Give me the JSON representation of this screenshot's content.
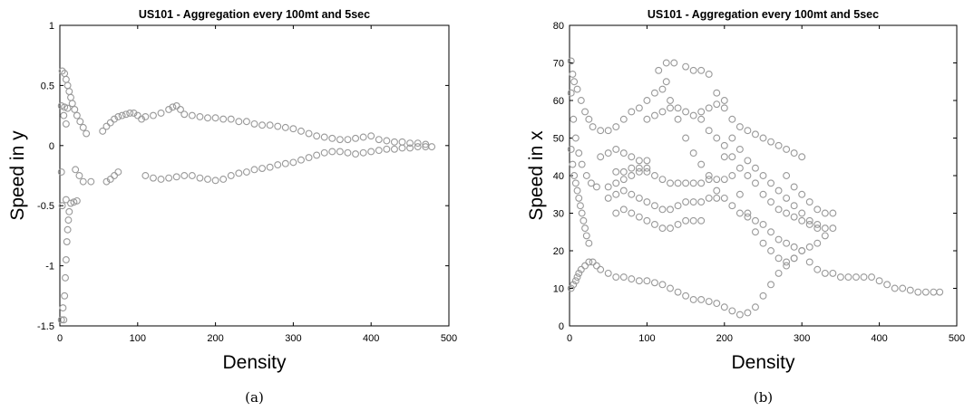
{
  "chart_data": [
    {
      "type": "scatter",
      "title": "US101 - Aggregation every 100mt and 5sec",
      "xlabel": "Density",
      "ylabel": "Speed in y",
      "caption": "(a)",
      "xlim": [
        0,
        500
      ],
      "ylim": [
        -1.5,
        1
      ],
      "xticks": [
        "0",
        "100",
        "200",
        "300",
        "400",
        "500"
      ],
      "yticks": [
        "-1.5",
        "-1",
        "-0.5",
        "0",
        "0.5",
        "1"
      ],
      "grid": false,
      "marker": "open-circle",
      "color": "#999999",
      "points": [
        [
          2,
          -1.45
        ],
        [
          5,
          -1.45
        ],
        [
          4,
          -1.35
        ],
        [
          6,
          -1.25
        ],
        [
          7,
          -1.1
        ],
        [
          8,
          -0.95
        ],
        [
          9,
          -0.8
        ],
        [
          10,
          -0.7
        ],
        [
          11,
          -0.62
        ],
        [
          12,
          -0.55
        ],
        [
          14,
          -0.48
        ],
        [
          18,
          -0.47
        ],
        [
          22,
          -0.46
        ],
        [
          8,
          -0.45
        ],
        [
          3,
          -0.5
        ],
        [
          2,
          -0.22
        ],
        [
          3,
          0.62
        ],
        [
          6,
          0.6
        ],
        [
          8,
          0.55
        ],
        [
          10,
          0.5
        ],
        [
          12,
          0.45
        ],
        [
          14,
          0.4
        ],
        [
          16,
          0.35
        ],
        [
          19,
          0.3
        ],
        [
          22,
          0.25
        ],
        [
          26,
          0.2
        ],
        [
          30,
          0.15
        ],
        [
          34,
          0.1
        ],
        [
          2,
          0.33
        ],
        [
          6,
          0.32
        ],
        [
          10,
          0.31
        ],
        [
          5,
          0.25
        ],
        [
          8,
          0.18
        ],
        [
          20,
          -0.2
        ],
        [
          25,
          -0.25
        ],
        [
          30,
          -0.3
        ],
        [
          40,
          -0.3
        ],
        [
          60,
          -0.3
        ],
        [
          65,
          -0.28
        ],
        [
          70,
          -0.25
        ],
        [
          75,
          -0.22
        ],
        [
          55,
          0.12
        ],
        [
          60,
          0.16
        ],
        [
          65,
          0.19
        ],
        [
          70,
          0.22
        ],
        [
          75,
          0.24
        ],
        [
          80,
          0.25
        ],
        [
          85,
          0.26
        ],
        [
          90,
          0.27
        ],
        [
          95,
          0.27
        ],
        [
          100,
          0.25
        ],
        [
          105,
          0.22
        ],
        [
          110,
          0.24
        ],
        [
          120,
          0.25
        ],
        [
          130,
          0.27
        ],
        [
          140,
          0.3
        ],
        [
          145,
          0.32
        ],
        [
          150,
          0.33
        ],
        [
          155,
          0.3
        ],
        [
          160,
          0.26
        ],
        [
          170,
          0.25
        ],
        [
          180,
          0.24
        ],
        [
          190,
          0.23
        ],
        [
          200,
          0.23
        ],
        [
          210,
          0.22
        ],
        [
          220,
          0.22
        ],
        [
          230,
          0.2
        ],
        [
          240,
          0.2
        ],
        [
          250,
          0.18
        ],
        [
          260,
          0.17
        ],
        [
          270,
          0.17
        ],
        [
          280,
          0.16
        ],
        [
          290,
          0.15
        ],
        [
          300,
          0.14
        ],
        [
          310,
          0.12
        ],
        [
          320,
          0.1
        ],
        [
          330,
          0.08
        ],
        [
          340,
          0.07
        ],
        [
          350,
          0.06
        ],
        [
          360,
          0.05
        ],
        [
          370,
          0.05
        ],
        [
          380,
          0.06
        ],
        [
          390,
          0.07
        ],
        [
          400,
          0.08
        ],
        [
          410,
          0.05
        ],
        [
          420,
          0.04
        ],
        [
          430,
          0.03
        ],
        [
          440,
          0.03
        ],
        [
          450,
          0.02
        ],
        [
          460,
          0.02
        ],
        [
          470,
          0.01
        ],
        [
          478,
          -0.01
        ],
        [
          110,
          -0.25
        ],
        [
          120,
          -0.27
        ],
        [
          130,
          -0.28
        ],
        [
          140,
          -0.27
        ],
        [
          150,
          -0.26
        ],
        [
          160,
          -0.25
        ],
        [
          170,
          -0.25
        ],
        [
          180,
          -0.27
        ],
        [
          190,
          -0.28
        ],
        [
          200,
          -0.29
        ],
        [
          210,
          -0.28
        ],
        [
          220,
          -0.25
        ],
        [
          230,
          -0.23
        ],
        [
          240,
          -0.22
        ],
        [
          250,
          -0.2
        ],
        [
          260,
          -0.19
        ],
        [
          270,
          -0.18
        ],
        [
          280,
          -0.16
        ],
        [
          290,
          -0.15
        ],
        [
          300,
          -0.14
        ],
        [
          310,
          -0.12
        ],
        [
          320,
          -0.1
        ],
        [
          330,
          -0.08
        ],
        [
          340,
          -0.06
        ],
        [
          350,
          -0.05
        ],
        [
          360,
          -0.05
        ],
        [
          370,
          -0.06
        ],
        [
          380,
          -0.07
        ],
        [
          390,
          -0.06
        ],
        [
          400,
          -0.05
        ],
        [
          410,
          -0.04
        ],
        [
          420,
          -0.03
        ],
        [
          430,
          -0.03
        ],
        [
          440,
          -0.02
        ],
        [
          450,
          -0.02
        ],
        [
          460,
          -0.01
        ],
        [
          470,
          -0.01
        ]
      ]
    },
    {
      "type": "scatter",
      "title": "US101 - Aggregation every 100mt and 5sec",
      "xlabel": "Density",
      "ylabel": "Speed in x",
      "caption": "(b)",
      "xlim": [
        0,
        500
      ],
      "ylim": [
        0,
        80
      ],
      "xticks": [
        "0",
        "100",
        "200",
        "300",
        "400",
        "500"
      ],
      "yticks": [
        "0",
        "10",
        "20",
        "30",
        "40",
        "50",
        "60",
        "70",
        "80"
      ],
      "grid": false,
      "marker": "open-circle",
      "color": "#999999",
      "points": [
        [
          2,
          70.5
        ],
        [
          4,
          67
        ],
        [
          6,
          65
        ],
        [
          10,
          63
        ],
        [
          15,
          60
        ],
        [
          20,
          57
        ],
        [
          25,
          55
        ],
        [
          30,
          53
        ],
        [
          40,
          52
        ],
        [
          50,
          52
        ],
        [
          60,
          53
        ],
        [
          70,
          55
        ],
        [
          80,
          57
        ],
        [
          90,
          58
        ],
        [
          100,
          60
        ],
        [
          110,
          62
        ],
        [
          120,
          63
        ],
        [
          2,
          62
        ],
        [
          5,
          55
        ],
        [
          8,
          50
        ],
        [
          12,
          46
        ],
        [
          16,
          43
        ],
        [
          22,
          40
        ],
        [
          28,
          38
        ],
        [
          35,
          37
        ],
        [
          50,
          37
        ],
        [
          60,
          38
        ],
        [
          70,
          39
        ],
        [
          80,
          40
        ],
        [
          90,
          41
        ],
        [
          100,
          42
        ],
        [
          2,
          47
        ],
        [
          4,
          43
        ],
        [
          6,
          40
        ],
        [
          8,
          38
        ],
        [
          10,
          36
        ],
        [
          12,
          34
        ],
        [
          14,
          32
        ],
        [
          16,
          30
        ],
        [
          18,
          28
        ],
        [
          20,
          26
        ],
        [
          22,
          24
        ],
        [
          25,
          22
        ],
        [
          2,
          10
        ],
        [
          5,
          11
        ],
        [
          8,
          12
        ],
        [
          10,
          13
        ],
        [
          12,
          14
        ],
        [
          15,
          15
        ],
        [
          20,
          16
        ],
        [
          25,
          17
        ],
        [
          30,
          17
        ],
        [
          35,
          16
        ],
        [
          40,
          15
        ],
        [
          50,
          14
        ],
        [
          60,
          13
        ],
        [
          70,
          13
        ],
        [
          80,
          12.5
        ],
        [
          90,
          12
        ],
        [
          100,
          12
        ],
        [
          110,
          11.5
        ],
        [
          120,
          11
        ],
        [
          130,
          10
        ],
        [
          140,
          9
        ],
        [
          150,
          8
        ],
        [
          160,
          7
        ],
        [
          170,
          7
        ],
        [
          180,
          6.5
        ],
        [
          190,
          6
        ],
        [
          200,
          5
        ],
        [
          210,
          4
        ],
        [
          220,
          3
        ],
        [
          230,
          3.5
        ],
        [
          240,
          5
        ],
        [
          250,
          8
        ],
        [
          260,
          11
        ],
        [
          270,
          14
        ],
        [
          280,
          16
        ],
        [
          290,
          18
        ],
        [
          300,
          20
        ],
        [
          310,
          17
        ],
        [
          320,
          15
        ],
        [
          330,
          14
        ],
        [
          340,
          14
        ],
        [
          350,
          13
        ],
        [
          360,
          13
        ],
        [
          370,
          13
        ],
        [
          380,
          13
        ],
        [
          390,
          13
        ],
        [
          400,
          12
        ],
        [
          410,
          11
        ],
        [
          420,
          10
        ],
        [
          430,
          10
        ],
        [
          440,
          9.5
        ],
        [
          450,
          9
        ],
        [
          460,
          9
        ],
        [
          470,
          9
        ],
        [
          478,
          9
        ],
        [
          40,
          45
        ],
        [
          50,
          46
        ],
        [
          60,
          47
        ],
        [
          70,
          46
        ],
        [
          80,
          45
        ],
        [
          90,
          44
        ],
        [
          100,
          44
        ],
        [
          60,
          30
        ],
        [
          70,
          31
        ],
        [
          80,
          30
        ],
        [
          90,
          29
        ],
        [
          100,
          28
        ],
        [
          110,
          27
        ],
        [
          120,
          26
        ],
        [
          130,
          26
        ],
        [
          140,
          27
        ],
        [
          150,
          28
        ],
        [
          160,
          28
        ],
        [
          170,
          28
        ],
        [
          50,
          34
        ],
        [
          60,
          35
        ],
        [
          70,
          36
        ],
        [
          80,
          35
        ],
        [
          90,
          34
        ],
        [
          100,
          33
        ],
        [
          110,
          32
        ],
        [
          120,
          31
        ],
        [
          130,
          31
        ],
        [
          140,
          32
        ],
        [
          150,
          33
        ],
        [
          160,
          33
        ],
        [
          170,
          33
        ],
        [
          180,
          34
        ],
        [
          190,
          34
        ],
        [
          60,
          41
        ],
        [
          70,
          41
        ],
        [
          80,
          42
        ],
        [
          90,
          42
        ],
        [
          100,
          41
        ],
        [
          110,
          40
        ],
        [
          120,
          39
        ],
        [
          130,
          38
        ],
        [
          140,
          38
        ],
        [
          150,
          38
        ],
        [
          160,
          38
        ],
        [
          170,
          38
        ],
        [
          180,
          39
        ],
        [
          190,
          39
        ],
        [
          200,
          39
        ],
        [
          115,
          68
        ],
        [
          125,
          70
        ],
        [
          135,
          70
        ],
        [
          150,
          69
        ],
        [
          160,
          68
        ],
        [
          170,
          68
        ],
        [
          180,
          67
        ],
        [
          190,
          62
        ],
        [
          200,
          58
        ],
        [
          210,
          55
        ],
        [
          220,
          53
        ],
        [
          230,
          52
        ],
        [
          240,
          51
        ],
        [
          250,
          50
        ],
        [
          260,
          49
        ],
        [
          270,
          48
        ],
        [
          280,
          47
        ],
        [
          290,
          46
        ],
        [
          300,
          45
        ],
        [
          280,
          40
        ],
        [
          290,
          37
        ],
        [
          300,
          35
        ],
        [
          310,
          33
        ],
        [
          320,
          31
        ],
        [
          330,
          30
        ],
        [
          340,
          30
        ],
        [
          340,
          26
        ],
        [
          330,
          24
        ],
        [
          320,
          22
        ],
        [
          310,
          21
        ],
        [
          300,
          20
        ],
        [
          290,
          21
        ],
        [
          280,
          22
        ],
        [
          270,
          23
        ],
        [
          260,
          25
        ],
        [
          250,
          27
        ],
        [
          240,
          28
        ],
        [
          230,
          29
        ],
        [
          220,
          30
        ],
        [
          210,
          32
        ],
        [
          200,
          34
        ],
        [
          190,
          36
        ],
        [
          180,
          40
        ],
        [
          170,
          43
        ],
        [
          160,
          46
        ],
        [
          150,
          50
        ],
        [
          140,
          55
        ],
        [
          130,
          60
        ],
        [
          125,
          65
        ],
        [
          210,
          45
        ],
        [
          220,
          42
        ],
        [
          230,
          40
        ],
        [
          240,
          38
        ],
        [
          250,
          35
        ],
        [
          260,
          33
        ],
        [
          270,
          31
        ],
        [
          280,
          30
        ],
        [
          290,
          29
        ],
        [
          300,
          28
        ],
        [
          310,
          27
        ],
        [
          320,
          26
        ],
        [
          200,
          48
        ],
        [
          210,
          50
        ],
        [
          220,
          47
        ],
        [
          230,
          44
        ],
        [
          240,
          42
        ],
        [
          250,
          40
        ],
        [
          260,
          38
        ],
        [
          270,
          36
        ],
        [
          280,
          34
        ],
        [
          290,
          32
        ],
        [
          300,
          30
        ],
        [
          310,
          28
        ],
        [
          320,
          27
        ],
        [
          330,
          26
        ],
        [
          170,
          55
        ],
        [
          180,
          52
        ],
        [
          190,
          50
        ],
        [
          200,
          45
        ],
        [
          210,
          40
        ],
        [
          220,
          35
        ],
        [
          230,
          30
        ],
        [
          240,
          25
        ],
        [
          250,
          22
        ],
        [
          260,
          20
        ],
        [
          270,
          18
        ],
        [
          280,
          17
        ],
        [
          290,
          18
        ],
        [
          100,
          55
        ],
        [
          110,
          56
        ],
        [
          120,
          57
        ],
        [
          130,
          58
        ],
        [
          140,
          58
        ],
        [
          150,
          57
        ],
        [
          160,
          56
        ],
        [
          170,
          57
        ],
        [
          180,
          58
        ],
        [
          190,
          59
        ],
        [
          200,
          60
        ]
      ]
    }
  ]
}
